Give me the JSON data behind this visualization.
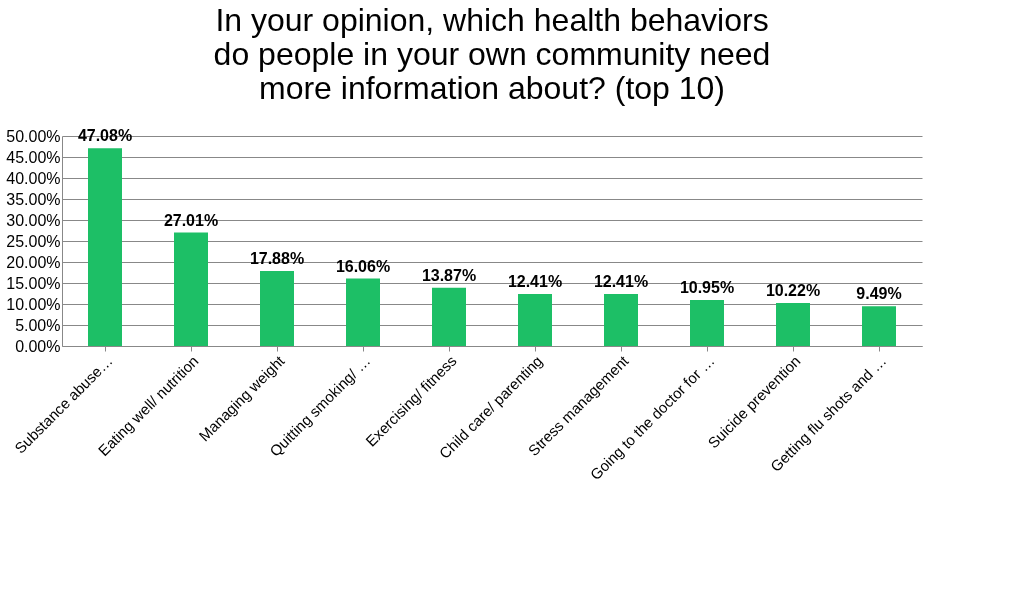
{
  "chart_data": {
    "type": "bar",
    "title": [
      "In your opinion, which health behaviors",
      "do people in your own community need",
      "more information about? (top 10)"
    ],
    "categories": [
      "Substance abuse…",
      "Eating well/ nutrition",
      "Managing weight",
      "Quitting smoking/ …",
      "Exercising/ fitness",
      "Child care/ parenting",
      "Stress management",
      "Going to the doctor for …",
      "Suicide prevention",
      "Getting flu shots and …"
    ],
    "values": [
      47.08,
      27.01,
      17.88,
      16.06,
      13.87,
      12.41,
      12.41,
      10.95,
      10.22,
      9.49
    ],
    "value_labels": [
      "47.08%",
      "27.01%",
      "17.88%",
      "16.06%",
      "13.87%",
      "12.41%",
      "12.41%",
      "10.95%",
      "10.22%",
      "9.49%"
    ],
    "color": "#1dbf66",
    "ylim": [
      0,
      50
    ],
    "yticks": [
      {
        "value": 0,
        "label": "0.00%"
      },
      {
        "value": 5,
        "label": "5.00%"
      },
      {
        "value": 10,
        "label": "10.00%"
      },
      {
        "value": 15,
        "label": "15.00%"
      },
      {
        "value": 20,
        "label": "20.00%"
      },
      {
        "value": 25,
        "label": "25.00%"
      },
      {
        "value": 30,
        "label": "30.00%"
      },
      {
        "value": 35,
        "label": "35.00%"
      },
      {
        "value": 40,
        "label": "40.00%"
      },
      {
        "value": 45,
        "label": "45.00%"
      },
      {
        "value": 50,
        "label": "50.00%"
      }
    ],
    "grid": "y"
  }
}
